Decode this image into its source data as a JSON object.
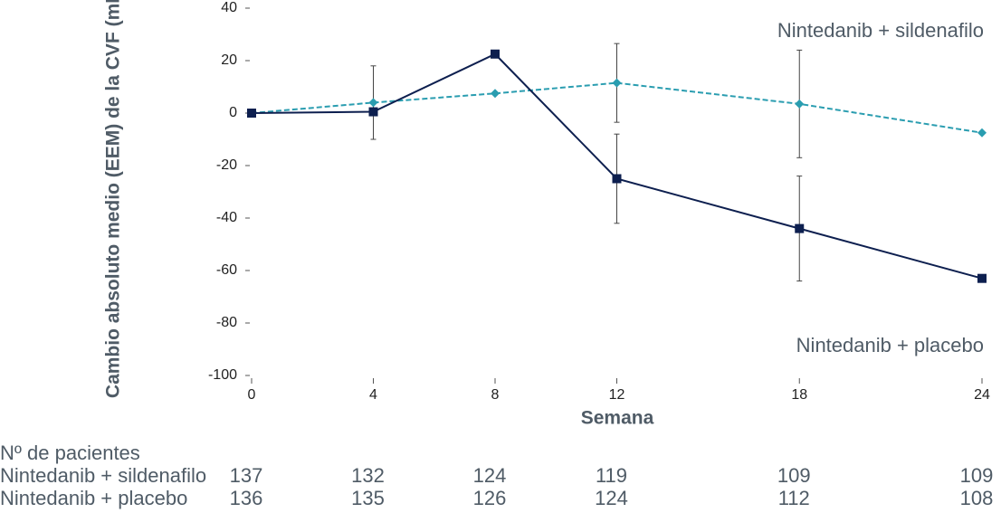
{
  "chart_data": {
    "type": "line",
    "y_label": "Cambio absoluto medio (EEM) de la CVF (mL)",
    "x_label": "Semana",
    "x": [
      0,
      4,
      8,
      12,
      18,
      24
    ],
    "xlim": [
      0,
      24
    ],
    "xticks": [
      0,
      4,
      8,
      12,
      18,
      24
    ],
    "ylim": [
      -100,
      40
    ],
    "yticks": [
      -100,
      -80,
      -60,
      -40,
      -20,
      0,
      20,
      40
    ],
    "series": [
      {
        "name": "Nintedanib + sildenafilo",
        "color": "#2a9db0",
        "dashed": true,
        "marker": "diamond",
        "values": [
          0,
          4,
          7.5,
          11.5,
          3.5,
          -7.5
        ],
        "errors": [
          null,
          14,
          null,
          15,
          20.5,
          null
        ]
      },
      {
        "name": "Nintedanib + placebo",
        "color": "#0d1f4f",
        "dashed": false,
        "marker": "square",
        "values": [
          0,
          0.5,
          22.5,
          -25,
          -44,
          -63
        ],
        "errors": [
          null,
          null,
          null,
          17,
          20,
          null
        ]
      }
    ],
    "patient_table": {
      "title": "Nº de pacientes",
      "rows": [
        {
          "label": "Nintedanib + sildenafilo",
          "values": [
            137,
            132,
            124,
            119,
            109,
            109
          ]
        },
        {
          "label": "Nintedanib + placebo",
          "values": [
            136,
            135,
            126,
            124,
            112,
            108
          ]
        }
      ]
    }
  }
}
